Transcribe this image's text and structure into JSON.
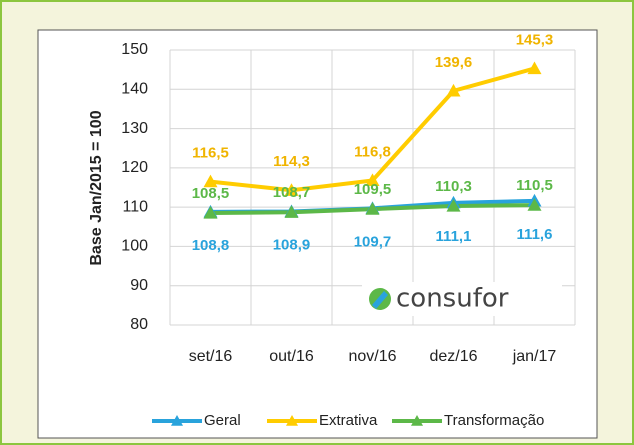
{
  "chart_data": {
    "type": "line",
    "y_label": "Base Jan/2015 = 100",
    "logo": "consufor",
    "categories": [
      "set/16",
      "out/16",
      "nov/16",
      "dez/16",
      "jan/17"
    ],
    "series": [
      {
        "name": "Geral",
        "color": "#29a3dc",
        "values": [
          108.8,
          108.9,
          109.7,
          111.1,
          111.6
        ],
        "value_labels": [
          "108,8",
          "108,9",
          "109,7",
          "111,1",
          "111,6"
        ]
      },
      {
        "name": "Extrativa",
        "color": "#ffcc00",
        "values": [
          116.5,
          114.3,
          116.8,
          139.6,
          145.3
        ],
        "value_labels": [
          "116,5",
          "114,3",
          "116,8",
          "139,6",
          "145,3"
        ]
      },
      {
        "name": "Transformação",
        "color": "#5cb848",
        "values": [
          108.5,
          108.7,
          109.5,
          110.3,
          110.5
        ],
        "value_labels": [
          "108,5",
          "108,7",
          "109,5",
          "110,3",
          "110,5"
        ]
      }
    ],
    "ylim": [
      80,
      150
    ],
    "yticks": [
      80,
      90,
      100,
      110,
      120,
      130,
      140,
      150
    ],
    "grid": true,
    "legend": "bottom"
  }
}
